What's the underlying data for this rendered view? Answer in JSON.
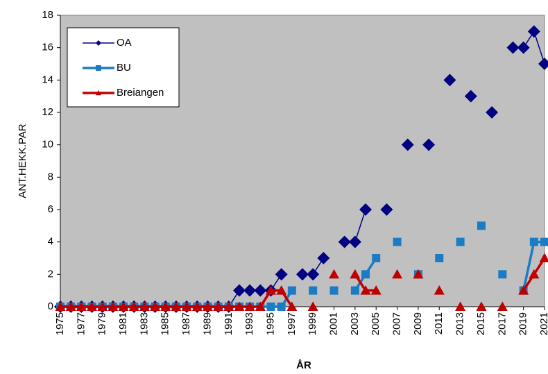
{
  "chart_data": {
    "type": "line",
    "x_label": "ÅR",
    "y_label": "ANT.HEKK.PAR",
    "x": [
      1975,
      1976,
      1977,
      1978,
      1979,
      1980,
      1981,
      1982,
      1983,
      1984,
      1985,
      1986,
      1987,
      1988,
      1989,
      1990,
      1991,
      1992,
      1993,
      1994,
      1995,
      1996,
      1997,
      1998,
      1999,
      2000,
      2001,
      2002,
      2003,
      2004,
      2005,
      2006,
      2007,
      2008,
      2009,
      2010,
      2011,
      2012,
      2013,
      2014,
      2015,
      2016,
      2017,
      2018,
      2019,
      2020,
      2021
    ],
    "series": [
      {
        "name": "OA",
        "color": "#000080",
        "marker": "diamond",
        "values": [
          0,
          0,
          0,
          0,
          0,
          0,
          0,
          0,
          0,
          0,
          0,
          0,
          0,
          0,
          0,
          0,
          0,
          1,
          1,
          1,
          1,
          2,
          null,
          2,
          2,
          3,
          null,
          4,
          4,
          6,
          null,
          6,
          null,
          10,
          null,
          10,
          null,
          14,
          null,
          13,
          null,
          12,
          null,
          16,
          16,
          17,
          15
        ]
      },
      {
        "name": "BU",
        "color": "#1a7cc4",
        "marker": "square",
        "values": [
          0,
          0,
          0,
          0,
          0,
          0,
          0,
          0,
          0,
          0,
          0,
          0,
          0,
          0,
          0,
          0,
          0,
          0,
          0,
          0,
          0,
          0,
          1,
          null,
          1,
          null,
          1,
          null,
          1,
          2,
          3,
          null,
          4,
          null,
          2,
          null,
          3,
          null,
          4,
          null,
          5,
          null,
          2,
          null,
          1,
          4,
          4
        ]
      },
      {
        "name": "Breiangen",
        "color": "#c00000",
        "marker": "triangle",
        "values": [
          0,
          0,
          0,
          0,
          0,
          0,
          0,
          0,
          0,
          0,
          0,
          0,
          0,
          0,
          0,
          0,
          0,
          0,
          0,
          0,
          1,
          1,
          0,
          null,
          0,
          null,
          2,
          null,
          2,
          1,
          1,
          null,
          2,
          null,
          2,
          null,
          1,
          null,
          0,
          null,
          0,
          null,
          0,
          null,
          1,
          2,
          3
        ]
      }
    ],
    "xlim": [
      1975,
      2021
    ],
    "xticks": [
      1975,
      1977,
      1979,
      1981,
      1983,
      1985,
      1987,
      1989,
      1991,
      1993,
      1995,
      1997,
      1999,
      2001,
      2003,
      2005,
      2007,
      2009,
      2011,
      2013,
      2015,
      2017,
      2019,
      2021
    ],
    "ylim": [
      0,
      18
    ],
    "yticks": [
      0,
      2,
      4,
      6,
      8,
      10,
      12,
      14,
      16,
      18
    ],
    "legend": "upper left"
  }
}
